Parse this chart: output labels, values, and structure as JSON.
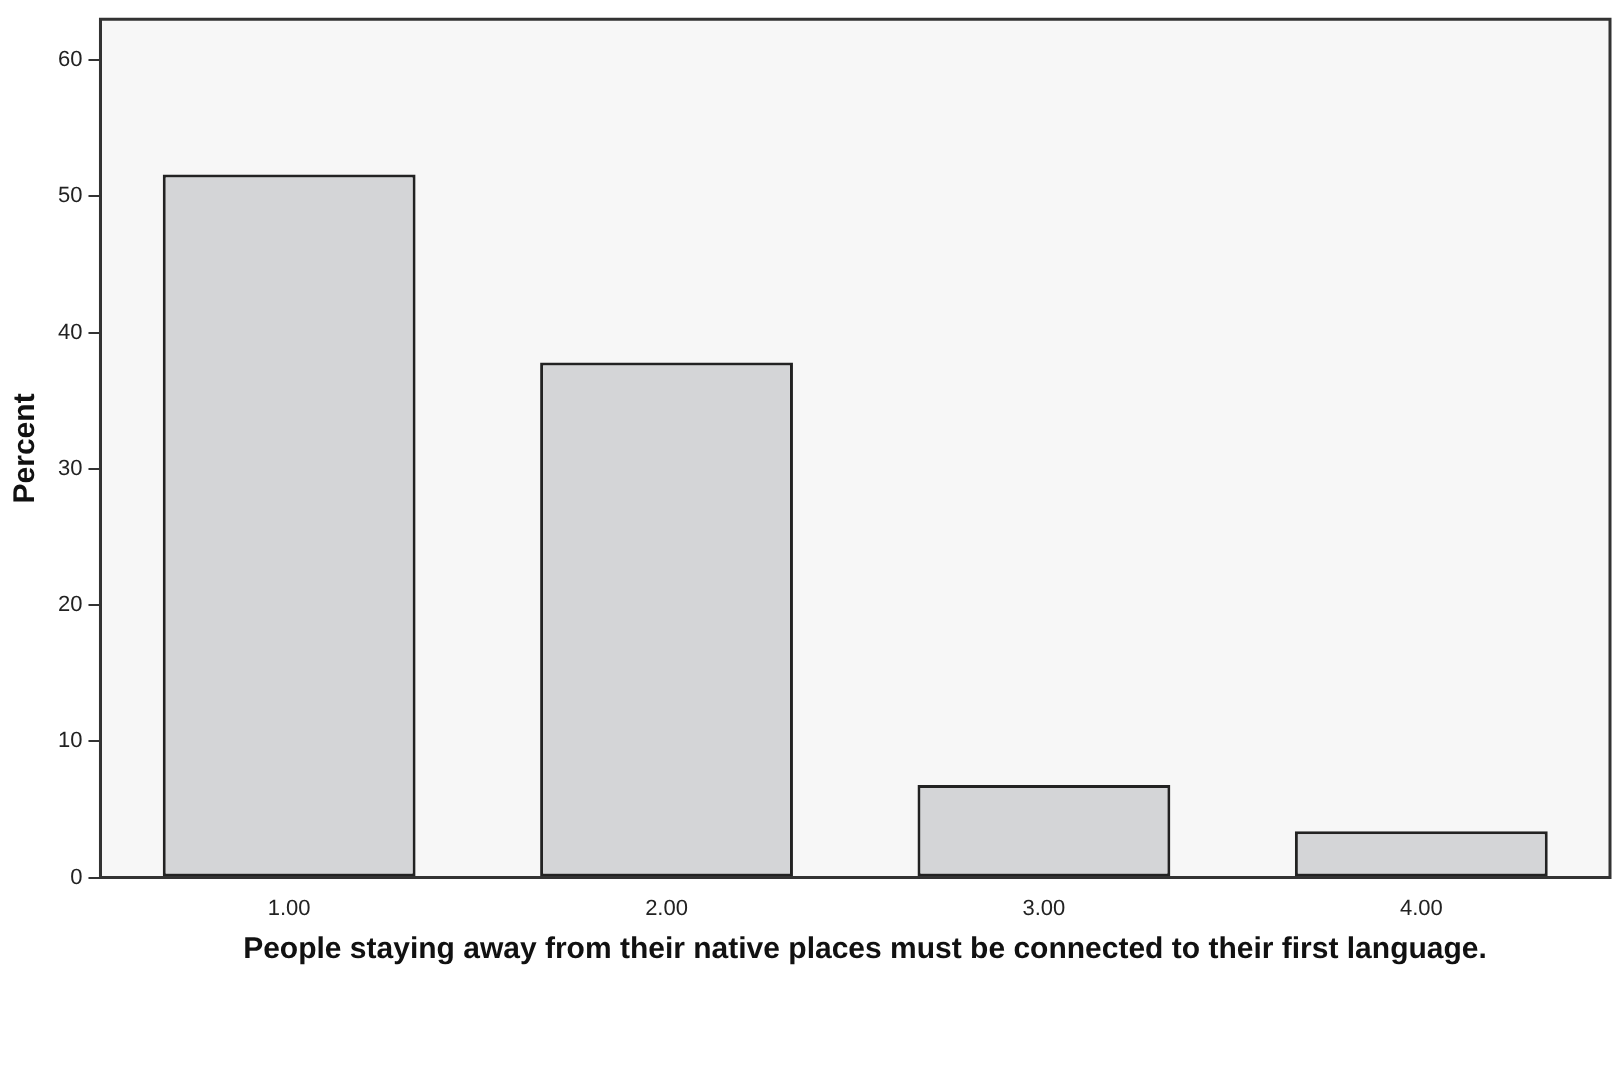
{
  "chart_data": {
    "type": "bar",
    "xlabel": "People staying away from their native places must be connected to their first language.",
    "ylabel": "Percent",
    "categories": [
      "1.00",
      "2.00",
      "3.00",
      "4.00"
    ],
    "values": [
      51.6,
      37.8,
      6.8,
      3.4
    ],
    "color": "#d4d5d7",
    "ylim": [
      0,
      63
    ],
    "yticks": [
      0,
      10,
      20,
      30,
      40,
      50,
      60
    ],
    "grid": false,
    "legend": false
  }
}
